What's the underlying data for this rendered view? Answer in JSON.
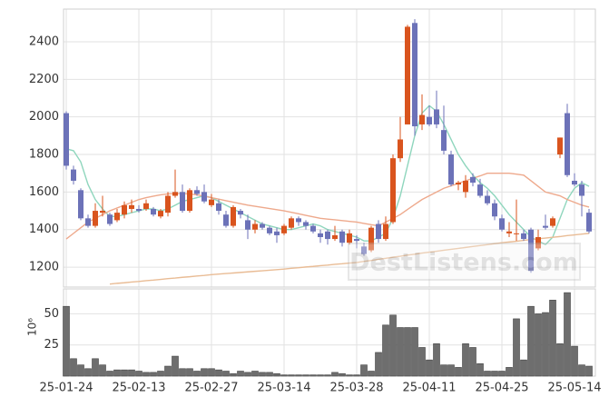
{
  "chart_data": {
    "type": "candlestick",
    "categories": [
      "25-01-24",
      null,
      null,
      null,
      null,
      null,
      null,
      null,
      null,
      null,
      "25-02-13",
      null,
      null,
      null,
      null,
      null,
      null,
      null,
      null,
      null,
      "25-02-27",
      null,
      null,
      null,
      null,
      null,
      null,
      null,
      null,
      null,
      "25-03-14",
      null,
      null,
      null,
      null,
      null,
      null,
      null,
      null,
      null,
      "25-03-28",
      null,
      null,
      null,
      null,
      null,
      null,
      null,
      null,
      null,
      "25-04-11",
      null,
      null,
      null,
      null,
      null,
      null,
      null,
      null,
      null,
      "25-04-25",
      null,
      null,
      null,
      null,
      null,
      null,
      null,
      null,
      null,
      "25-05-14",
      null,
      null
    ],
    "open": [
      2020,
      1720,
      1610,
      1460,
      1420,
      1490,
      1480,
      1450,
      1480,
      1510,
      1510,
      1510,
      1510,
      1470,
      1490,
      1580,
      1600,
      1500,
      1610,
      1600,
      1530,
      1540,
      1480,
      1420,
      1500,
      1450,
      1400,
      1430,
      1410,
      1390,
      1380,
      1410,
      1460,
      1440,
      1420,
      1380,
      1390,
      1350,
      1390,
      1330,
      1350,
      1310,
      1290,
      1430,
      1350,
      1440,
      1780,
      1960,
      2500,
      1960,
      2000,
      2040,
      1930,
      1800,
      1640,
      1600,
      1680,
      1640,
      1580,
      1540,
      1460,
      1380,
      1380,
      1380,
      1400,
      1300,
      1420,
      1420,
      1800,
      2020,
      1660,
      1640,
      1490
    ],
    "high": [
      2030,
      1740,
      1620,
      1480,
      1540,
      1580,
      1490,
      1510,
      1550,
      1560,
      1530,
      1560,
      1520,
      1510,
      1600,
      1720,
      1640,
      1620,
      1630,
      1640,
      1590,
      1560,
      1500,
      1530,
      1510,
      1480,
      1450,
      1440,
      1420,
      1410,
      1430,
      1470,
      1470,
      1450,
      1430,
      1400,
      1400,
      1420,
      1400,
      1400,
      1370,
      1330,
      1420,
      1450,
      1470,
      1800,
      2000,
      2490,
      2520,
      2120,
      2060,
      2140,
      2060,
      1820,
      1660,
      1690,
      1700,
      1670,
      1610,
      1560,
      1480,
      1440,
      1560,
      1400,
      1410,
      1400,
      1480,
      1470,
      1890,
      2070,
      1700,
      1660,
      1510
    ],
    "low": [
      1720,
      1640,
      1450,
      1410,
      1410,
      1470,
      1420,
      1440,
      1460,
      1490,
      1490,
      1500,
      1470,
      1460,
      1470,
      1570,
      1490,
      1490,
      1580,
      1540,
      1520,
      1480,
      1410,
      1410,
      1460,
      1350,
      1380,
      1400,
      1370,
      1330,
      1370,
      1400,
      1420,
      1400,
      1380,
      1330,
      1320,
      1340,
      1310,
      1320,
      1300,
      1260,
      1280,
      1330,
      1340,
      1430,
      1760,
      1960,
      1900,
      1930,
      1950,
      1940,
      1800,
      1630,
      1610,
      1570,
      1630,
      1570,
      1530,
      1450,
      1390,
      1360,
      1340,
      1340,
      1170,
      1290,
      1400,
      1410,
      1780,
      1680,
      1630,
      1470,
      1380
    ],
    "close": [
      1740,
      1660,
      1460,
      1420,
      1500,
      1500,
      1430,
      1490,
      1530,
      1530,
      1500,
      1540,
      1480,
      1500,
      1580,
      1600,
      1500,
      1610,
      1590,
      1550,
      1560,
      1500,
      1420,
      1520,
      1480,
      1400,
      1430,
      1410,
      1380,
      1370,
      1420,
      1460,
      1440,
      1420,
      1390,
      1360,
      1350,
      1370,
      1330,
      1380,
      1340,
      1270,
      1410,
      1350,
      1430,
      1780,
      1880,
      2480,
      1950,
      2010,
      1960,
      1960,
      1820,
      1640,
      1650,
      1660,
      1650,
      1580,
      1540,
      1470,
      1400,
      1390,
      1380,
      1350,
      1180,
      1360,
      1410,
      1460,
      1890,
      1690,
      1640,
      1580,
      1390
    ],
    "up_color": "#d9541e",
    "down_color": "#6c72b8",
    "ylim": [
      1094,
      2574
    ],
    "yticks": [
      1200,
      1400,
      1600,
      1800,
      2000,
      2200,
      2400
    ],
    "grid": true,
    "lines": [
      {
        "color": "#8fd6bd",
        "values": [
          1830,
          1820,
          1760,
          1640,
          1560,
          1510,
          1470,
          1470,
          1480,
          1490,
          1500,
          1510,
          1510,
          1500,
          1510,
          1530,
          1550,
          1560,
          1570,
          1580,
          1570,
          1550,
          1530,
          1510,
          1490,
          1470,
          1450,
          1430,
          1420,
          1410,
          1400,
          1400,
          1410,
          1420,
          1430,
          1420,
          1400,
          1390,
          1380,
          1370,
          1360,
          1340,
          1340,
          1360,
          1380,
          1460,
          1580,
          1740,
          1900,
          2020,
          2060,
          2030,
          1960,
          1880,
          1800,
          1740,
          1690,
          1650,
          1620,
          1580,
          1530,
          1480,
          1440,
          1400,
          1360,
          1340,
          1320,
          1360,
          1460,
          1560,
          1620,
          1650,
          1630
        ]
      },
      {
        "color": "#eea98c",
        "values": [
          1350,
          1380,
          1410,
          1440,
          1460,
          1480,
          1500,
          1515,
          1530,
          1545,
          1560,
          1570,
          1578,
          1585,
          1590,
          1592,
          1592,
          1590,
          1585,
          1578,
          1570,
          1562,
          1554,
          1546,
          1538,
          1530,
          1524,
          1518,
          1512,
          1506,
          1500,
          1492,
          1484,
          1476,
          1468,
          1460,
          1456,
          1452,
          1448,
          1444,
          1440,
          1433,
          1426,
          1420,
          1440,
          1460,
          1480,
          1507,
          1534,
          1560,
          1580,
          1600,
          1620,
          1633,
          1646,
          1660,
          1673,
          1686,
          1700,
          1700,
          1700,
          1700,
          1695,
          1690,
          1660,
          1630,
          1600,
          1590,
          1580,
          1560,
          1545,
          1530,
          1520
        ]
      },
      {
        "color": "#e9bc95",
        "values": [
          null,
          null,
          null,
          null,
          null,
          null,
          1110,
          1114,
          1117,
          1121,
          1124,
          1128,
          1131,
          1135,
          1139,
          1142,
          1146,
          1149,
          1153,
          1156,
          1160,
          1163,
          1166,
          1169,
          1172,
          1175,
          1178,
          1181,
          1184,
          1187,
          1190,
          1194,
          1197,
          1201,
          1204,
          1208,
          1211,
          1215,
          1218,
          1222,
          1225,
          1231,
          1236,
          1242,
          1247,
          1253,
          1258,
          1264,
          1269,
          1275,
          1280,
          1285,
          1290,
          1295,
          1300,
          1305,
          1310,
          1315,
          1320,
          1325,
          1330,
          1334,
          1338,
          1343,
          1347,
          1351,
          1355,
          1359,
          1363,
          1368,
          1372,
          1376,
          1380
        ]
      }
    ],
    "volume": {
      "color": "#6e6e6e",
      "unit": "10⁶",
      "ylim": [
        0,
        70
      ],
      "yticks": [
        25,
        50
      ],
      "values": [
        56,
        14,
        9,
        6,
        14,
        9,
        4,
        5,
        5,
        5,
        4,
        3,
        3,
        4,
        8,
        16,
        6,
        6,
        4,
        6,
        6,
        5,
        4,
        2,
        4,
        3,
        4,
        3,
        3,
        2,
        1,
        1,
        1,
        1,
        1,
        1,
        1,
        3,
        2,
        1,
        1,
        9,
        4,
        19,
        41,
        49,
        39,
        39,
        39,
        23,
        13,
        26,
        9,
        9,
        7,
        26,
        23,
        10,
        4,
        4,
        4,
        7,
        46,
        13,
        56,
        50,
        51,
        61,
        26,
        67,
        24,
        9,
        8
      ]
    },
    "watermark": "DestListens.com"
  }
}
